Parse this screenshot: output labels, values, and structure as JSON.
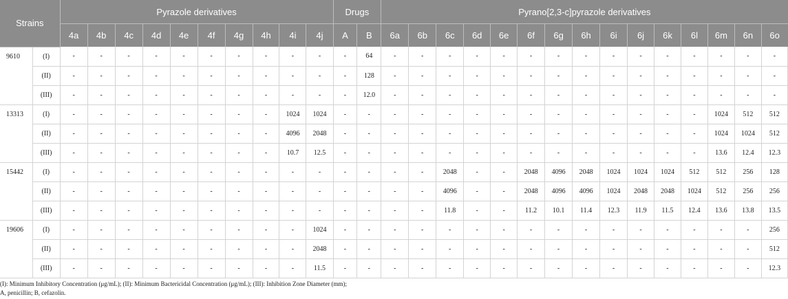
{
  "header": {
    "strains_label": "Strains",
    "groups": [
      {
        "label": "Pyrazole derivatives",
        "span": 10
      },
      {
        "label": "Drugs",
        "span": 2
      },
      {
        "label": "Pyrano[2,3-c]pyrazole derivatives",
        "span": 15
      }
    ],
    "columns": [
      "4a",
      "4b",
      "4c",
      "4d",
      "4e",
      "4f",
      "4g",
      "4h",
      "4i",
      "4j",
      "A",
      "B",
      "6a",
      "6b",
      "6c",
      "6d",
      "6e",
      "6f",
      "6g",
      "6h",
      "6i",
      "6j",
      "6k",
      "6l",
      "6m",
      "6n",
      "6o"
    ]
  },
  "strains": [
    {
      "name": "9610",
      "rows": [
        {
          "level": "(I)",
          "values": [
            "-",
            "-",
            "-",
            "-",
            "-",
            "-",
            "-",
            "-",
            "-",
            "-",
            "-",
            "64",
            "-",
            "-",
            "-",
            "-",
            "-",
            "-",
            "-",
            "-",
            "-",
            "-",
            "-",
            "-",
            "-",
            "-",
            "-"
          ]
        },
        {
          "level": "(II)",
          "values": [
            "-",
            "-",
            "-",
            "-",
            "-",
            "-",
            "-",
            "-",
            "-",
            "-",
            "-",
            "128",
            "-",
            "-",
            "-",
            "-",
            "-",
            "-",
            "-",
            "-",
            "-",
            "-",
            "-",
            "-",
            "-",
            "-",
            "-"
          ]
        },
        {
          "level": "(III)",
          "values": [
            "-",
            "-",
            "-",
            "-",
            "-",
            "-",
            "-",
            "-",
            "-",
            "-",
            "-",
            "12.0",
            "-",
            "-",
            "-",
            "-",
            "-",
            "-",
            "-",
            "-",
            "-",
            "-",
            "-",
            "-",
            "-",
            "-",
            "-"
          ]
        }
      ]
    },
    {
      "name": "13313",
      "rows": [
        {
          "level": "(I)",
          "values": [
            "-",
            "-",
            "-",
            "-",
            "-",
            "-",
            "-",
            "-",
            "1024",
            "1024",
            "-",
            "-",
            "-",
            "-",
            "-",
            "-",
            "-",
            "-",
            "-",
            "-",
            "-",
            "-",
            "-",
            "-",
            "1024",
            "512",
            "512"
          ]
        },
        {
          "level": "(II)",
          "values": [
            "-",
            "-",
            "-",
            "-",
            "-",
            "-",
            "-",
            "-",
            "4096",
            "2048",
            "-",
            "-",
            "-",
            "-",
            "-",
            "-",
            "-",
            "-",
            "-",
            "-",
            "-",
            "-",
            "-",
            "-",
            "1024",
            "1024",
            "512"
          ]
        },
        {
          "level": "(III)",
          "values": [
            "-",
            "-",
            "-",
            "-",
            "-",
            "-",
            "-",
            "-",
            "10.7",
            "12.5",
            "-",
            "-",
            "-",
            "-",
            "-",
            "-",
            "-",
            "-",
            "-",
            "-",
            "-",
            "-",
            "-",
            "-",
            "13.6",
            "12.4",
            "12.3"
          ]
        }
      ]
    },
    {
      "name": "15442",
      "rows": [
        {
          "level": "(I)",
          "values": [
            "-",
            "-",
            "-",
            "-",
            "-",
            "-",
            "-",
            "-",
            "-",
            "-",
            "-",
            "-",
            "-",
            "-",
            "2048",
            "-",
            "-",
            "2048",
            "4096",
            "2048",
            "1024",
            "1024",
            "1024",
            "512",
            "512",
            "256",
            "128"
          ]
        },
        {
          "level": "(II)",
          "values": [
            "-",
            "-",
            "-",
            "-",
            "-",
            "-",
            "-",
            "-",
            "-",
            "-",
            "-",
            "-",
            "-",
            "-",
            "4096",
            "-",
            "-",
            "2048",
            "4096",
            "4096",
            "1024",
            "2048",
            "2048",
            "1024",
            "512",
            "256",
            "256"
          ]
        },
        {
          "level": "(III)",
          "values": [
            "-",
            "-",
            "-",
            "-",
            "-",
            "-",
            "-",
            "-",
            "-",
            "-",
            "-",
            "-",
            "-",
            "-",
            "11.8",
            "-",
            "-",
            "11.2",
            "10.1",
            "11.4",
            "12.3",
            "11.9",
            "11.5",
            "12.4",
            "13.6",
            "13.8",
            "13.5"
          ]
        }
      ]
    },
    {
      "name": "19606",
      "rows": [
        {
          "level": "(I)",
          "values": [
            "-",
            "-",
            "-",
            "-",
            "-",
            "-",
            "-",
            "-",
            "-",
            "1024",
            "-",
            "-",
            "-",
            "-",
            "-",
            "-",
            "-",
            "-",
            "-",
            "-",
            "-",
            "-",
            "-",
            "-",
            "-",
            "-",
            "256"
          ]
        },
        {
          "level": "(II)",
          "values": [
            "-",
            "-",
            "-",
            "-",
            "-",
            "-",
            "-",
            "-",
            "-",
            "2048",
            "-",
            "-",
            "-",
            "-",
            "-",
            "-",
            "-",
            "-",
            "-",
            "-",
            "-",
            "-",
            "-",
            "-",
            "-",
            "-",
            "512"
          ]
        },
        {
          "level": "(III)",
          "values": [
            "-",
            "-",
            "-",
            "-",
            "-",
            "-",
            "-",
            "-",
            "-",
            "11.5",
            "-",
            "-",
            "-",
            "-",
            "-",
            "-",
            "-",
            "-",
            "-",
            "-",
            "-",
            "-",
            "-",
            "-",
            "-",
            "-",
            "12.3"
          ]
        }
      ]
    }
  ],
  "footnotes": [
    "(I): Minimum Inhibitory Concentration (μg/mL); (II): Minimum Bactericidal Concentration (μg/mL); (III): Inhibition Zone Diameter (mm);",
    "A, penicillin; B, cefazolin."
  ]
}
